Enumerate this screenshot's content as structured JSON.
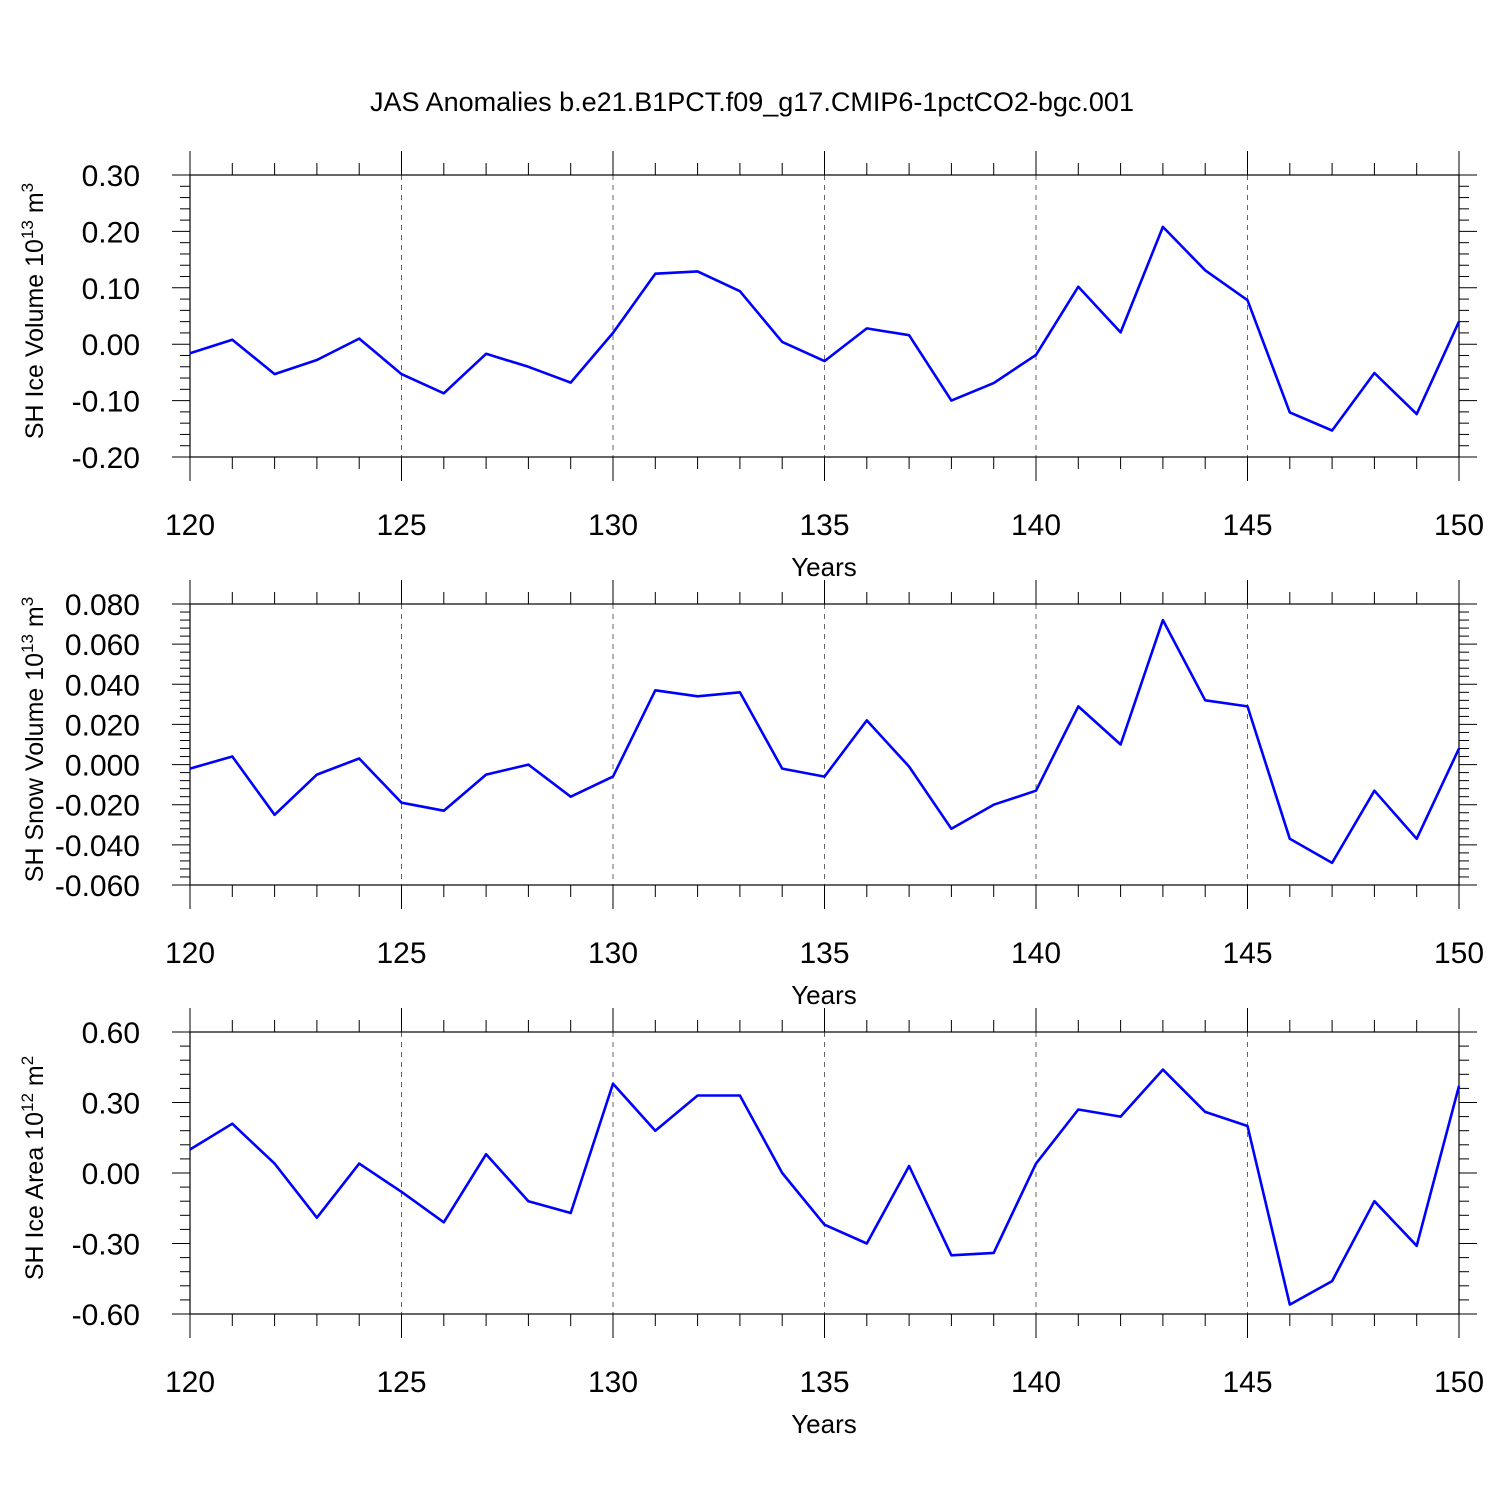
{
  "title": "JAS Anomalies b.e21.B1PCT.f09_g17.CMIP6-1pctCO2-bgc.001",
  "chart_data": [
    {
      "type": "line",
      "ylabel": "SH Ice Volume",
      "yunit_base": "10",
      "yunit_exp": "13",
      "yunit_suffix": "m",
      "yunit_suffix_exp": "3",
      "xlabel": "Years",
      "xlim": [
        120,
        150
      ],
      "ylim": [
        -0.2,
        0.3
      ],
      "x_ticks": [
        "120",
        "125",
        "130",
        "135",
        "140",
        "145",
        "150"
      ],
      "y_ticks": [
        "-0.20",
        "-0.10",
        "0.00",
        "0.10",
        "0.20",
        "0.30"
      ],
      "grid": "vertical dashed at major x ticks",
      "color": "#0000ff",
      "x": [
        120,
        121,
        122,
        123,
        124,
        125,
        126,
        127,
        128,
        129,
        130,
        131,
        132,
        133,
        134,
        135,
        136,
        137,
        138,
        139,
        140,
        141,
        142,
        143,
        144,
        145,
        146,
        147,
        148,
        149,
        150
      ],
      "values": [
        -0.016,
        0.008,
        -0.053,
        -0.028,
        0.01,
        -0.053,
        -0.087,
        -0.017,
        -0.04,
        -0.068,
        0.02,
        0.125,
        0.129,
        0.094,
        0.004,
        -0.03,
        0.028,
        0.016,
        -0.1,
        -0.069,
        -0.019,
        0.102,
        0.021,
        0.208,
        0.131,
        0.078,
        -0.121,
        -0.153,
        -0.051,
        -0.124,
        0.04
      ]
    },
    {
      "type": "line",
      "ylabel": "SH Snow Volume",
      "yunit_base": "10",
      "yunit_exp": "13",
      "yunit_suffix": "m",
      "yunit_suffix_exp": "3",
      "xlabel": "Years",
      "xlim": [
        120,
        150
      ],
      "ylim": [
        -0.06,
        0.08
      ],
      "x_ticks": [
        "120",
        "125",
        "130",
        "135",
        "140",
        "145",
        "150"
      ],
      "y_ticks": [
        "-0.060",
        "-0.040",
        "-0.020",
        "0.000",
        "0.020",
        "0.040",
        "0.060",
        "0.080"
      ],
      "grid": "vertical dashed at major x ticks",
      "color": "#0000ff",
      "x": [
        120,
        121,
        122,
        123,
        124,
        125,
        126,
        127,
        128,
        129,
        130,
        131,
        132,
        133,
        134,
        135,
        136,
        137,
        138,
        139,
        140,
        141,
        142,
        143,
        144,
        145,
        146,
        147,
        148,
        149,
        150
      ],
      "values": [
        -0.002,
        0.004,
        -0.025,
        -0.005,
        0.003,
        -0.019,
        -0.023,
        -0.005,
        0.0,
        -0.016,
        -0.006,
        0.037,
        0.034,
        0.036,
        -0.002,
        -0.006,
        0.022,
        -0.001,
        -0.032,
        -0.02,
        -0.013,
        0.029,
        0.01,
        0.072,
        0.032,
        0.029,
        -0.037,
        -0.049,
        -0.013,
        -0.037,
        0.008
      ]
    },
    {
      "type": "line",
      "ylabel": "SH Ice Area",
      "yunit_base": "10",
      "yunit_exp": "12",
      "yunit_suffix": "m",
      "yunit_suffix_exp": "2",
      "xlabel": "Years",
      "xlim": [
        120,
        150
      ],
      "ylim": [
        -0.6,
        0.6
      ],
      "x_ticks": [
        "120",
        "125",
        "130",
        "135",
        "140",
        "145",
        "150"
      ],
      "y_ticks": [
        "-0.60",
        "-0.30",
        "0.00",
        "0.30",
        "0.60"
      ],
      "grid": "vertical dashed at major x ticks",
      "color": "#0000ff",
      "x": [
        120,
        121,
        122,
        123,
        124,
        125,
        126,
        127,
        128,
        129,
        130,
        131,
        132,
        133,
        134,
        135,
        136,
        137,
        138,
        139,
        140,
        141,
        142,
        143,
        144,
        145,
        146,
        147,
        148,
        149,
        150
      ],
      "values": [
        0.1,
        0.21,
        0.04,
        -0.19,
        0.04,
        -0.08,
        -0.21,
        0.08,
        -0.12,
        -0.17,
        0.38,
        0.18,
        0.33,
        0.33,
        0.0,
        -0.22,
        -0.3,
        0.03,
        -0.35,
        -0.34,
        0.04,
        0.27,
        0.24,
        0.44,
        0.26,
        0.2,
        -0.56,
        -0.46,
        -0.12,
        -0.31,
        0.37
      ]
    }
  ]
}
